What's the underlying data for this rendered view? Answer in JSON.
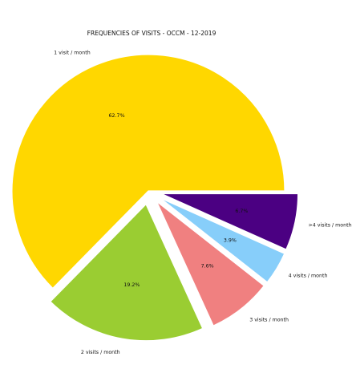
{
  "chart_data": {
    "type": "pie",
    "title": "FREQUENCIES OF VISITS - OCCM - 12-2019",
    "slices": [
      {
        "label": "1 visit / month",
        "value": 62.7,
        "pct_label": "62.7%",
        "color": "#FFD700"
      },
      {
        "label": "2 visits / month",
        "value": 19.2,
        "pct_label": "19.2%",
        "color": "#9ACD32"
      },
      {
        "label": "3 visits / month",
        "value": 7.6,
        "pct_label": "7.6%",
        "color": "#F08080"
      },
      {
        "label": "4 visits / month",
        "value": 3.9,
        "pct_label": "3.9%",
        "color": "#87CEFA"
      },
      {
        "label": ">4 visits / month",
        "value": 6.7,
        "pct_label": "6.7%",
        "color": "#4B0082"
      }
    ],
    "start_angle_deg": 0,
    "direction": "counterclockwise",
    "explode": [
      0,
      0.1,
      0.1,
      0.1,
      0.1
    ],
    "legend": "none"
  }
}
